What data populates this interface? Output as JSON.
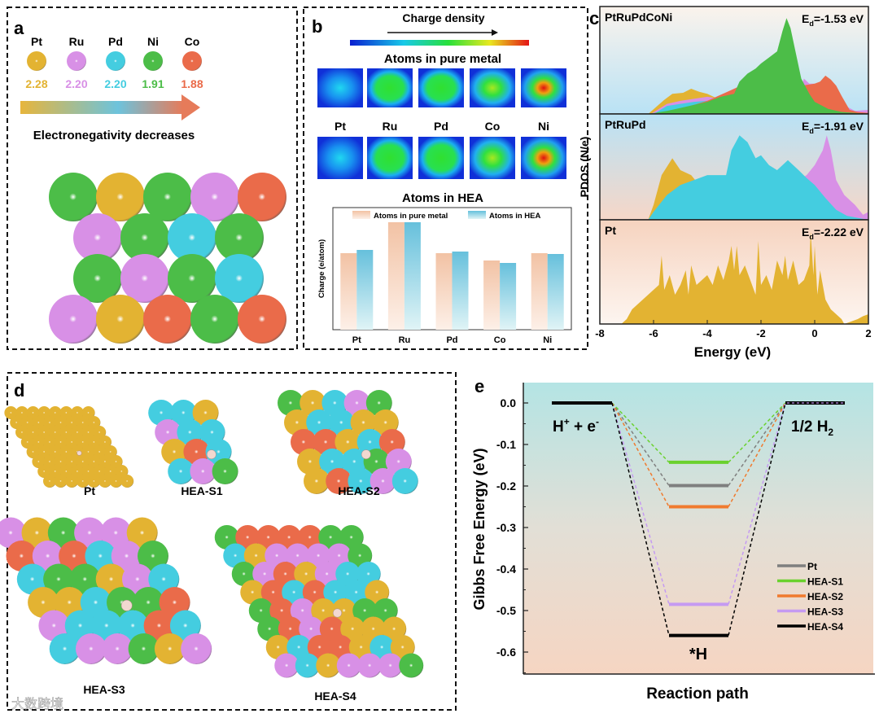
{
  "colors": {
    "Pt": "#e3b332",
    "Ru": "#d890e6",
    "Pd": "#44cde0",
    "Ni": "#4cbd48",
    "Co": "#ea6b4a"
  },
  "panel_a": {
    "letter": "a",
    "elements": [
      {
        "symbol": "Pt",
        "value": "2.28"
      },
      {
        "symbol": "Ru",
        "value": "2.20"
      },
      {
        "symbol": "Pd",
        "value": "2.20"
      },
      {
        "symbol": "Ni",
        "value": "1.91"
      },
      {
        "symbol": "Co",
        "value": "1.88"
      }
    ],
    "arrow_label": "Electronegativity decreases"
  },
  "panel_b": {
    "letter": "b",
    "colorbar_title": "Charge density",
    "row1_title": "Atoms in pure metal",
    "row2_title": "Atoms in HEA",
    "atom_labels": [
      "Pt",
      "Ru",
      "Pd",
      "Co",
      "Ni"
    ],
    "pure_intensity": [
      0.3,
      0.55,
      0.55,
      0.7,
      1.0
    ],
    "hea_intensity": [
      0.3,
      0.58,
      0.56,
      0.62,
      0.95
    ]
  },
  "panel_c": {
    "letter": "c",
    "panels": [
      {
        "name": "PtRuPdCoNi",
        "ed_prefix": "E",
        "ed_sub": "d",
        "ed_value": "=-1.53 eV"
      },
      {
        "name": "PtRuPd",
        "ed_prefix": "E",
        "ed_sub": "d",
        "ed_value": "=-1.91 eV"
      },
      {
        "name": "Pt",
        "ed_prefix": "E",
        "ed_sub": "d",
        "ed_value": "=-2.22 eV"
      }
    ]
  },
  "panel_d": {
    "letter": "d",
    "labels": [
      "Pt",
      "HEA-S1",
      "HEA-S2",
      "HEA-S3",
      "HEA-S4"
    ]
  },
  "panel_e": {
    "letter": "e",
    "label_initial": "H",
    "label_initial_sup": "+",
    "label_initial_rest": " + e",
    "label_initial_sup2": "-",
    "label_final": "1/2 H",
    "label_final_sub": "2",
    "label_mid": "*H"
  },
  "watermark": "大数跨境",
  "chart_data": [
    {
      "type": "bar",
      "title": "",
      "xlabel": "",
      "ylabel": "Charge (e/atom)",
      "categories": [
        "Pt",
        "Ru",
        "Pd",
        "Co",
        "Ni"
      ],
      "series": [
        {
          "name": "Atoms in pure metal",
          "color": "#f2c4a8",
          "values": [
            0.94,
            1.32,
            0.94,
            0.85,
            0.94
          ]
        },
        {
          "name": "Atoms in HEA",
          "color": "#6cc3dc",
          "values": [
            0.98,
            1.32,
            0.96,
            0.82,
            0.93
          ]
        }
      ],
      "ylim": [
        0,
        1.5
      ],
      "legend": "top"
    },
    {
      "type": "area",
      "title": "PDOS",
      "xlabel": "Energy (eV)",
      "ylabel": "PDOS (N/e)",
      "xlim": [
        -8,
        2
      ],
      "xticks": [
        "-8",
        "-6",
        "-4",
        "-2",
        "0",
        "2"
      ],
      "subplots": [
        {
          "name": "PtRuPdCoNi",
          "series": [
            {
              "name": "Pt",
              "x": [
                -6.2,
                -5.6,
                -5.3,
                -4.9,
                -4.6,
                -4.3,
                -4.0,
                -3.6,
                -3.0,
                -2.0
              ],
              "y": [
                0,
                0.14,
                0.2,
                0.21,
                0.25,
                0.22,
                0.2,
                0.15,
                0.1,
                0
              ]
            },
            {
              "name": "Ru",
              "x": [
                -6.1,
                -5.5,
                -5.0,
                -4.5,
                -4.0,
                -3.5,
                -3.0,
                -2.0,
                -0.6,
                -0.4,
                -0.2,
                0,
                0.5,
                1.0,
                1.5,
                2.0
              ],
              "y": [
                0,
                0.1,
                0.13,
                0.15,
                0.17,
                0.15,
                0.13,
                0.1,
                0.2,
                0.35,
                0.3,
                0.3,
                0.3,
                0.1,
                0.03,
                0.04
              ]
            },
            {
              "name": "Pd",
              "x": [
                -6.0,
                -5.5,
                -5.0,
                -4.5,
                -4.0,
                -3.0,
                -2.0
              ],
              "y": [
                0,
                0.08,
                0.1,
                0.12,
                0.13,
                0.1,
                0
              ]
            },
            {
              "name": "Co",
              "x": [
                -6.0,
                -5.0,
                -4.0,
                -3.0,
                -2.6,
                -2.0,
                -1.0,
                -0.5,
                0,
                0.2,
                0.4,
                0.6,
                0.8,
                1.0,
                1.3,
                1.6,
                2.0
              ],
              "y": [
                0,
                0.05,
                0.13,
                0.25,
                0.3,
                0.3,
                0.3,
                0.28,
                0.3,
                0.32,
                0.38,
                0.34,
                0.28,
                0.18,
                0.04,
                0.02,
                0.01
              ]
            },
            {
              "name": "Ni",
              "x": [
                -6.2,
                -5.5,
                -5.0,
                -4.0,
                -3.5,
                -3.0,
                -2.8,
                -2.5,
                -2.2,
                -2.0,
                -1.7,
                -1.4,
                -1.2,
                -1.05,
                -0.9,
                -0.7,
                -0.5,
                -0.2,
                0,
                0.5,
                1.0,
                2.0
              ],
              "y": [
                0,
                0.03,
                0.06,
                0.12,
                0.17,
                0.2,
                0.32,
                0.4,
                0.45,
                0.5,
                0.56,
                0.62,
                0.82,
                0.95,
                0.85,
                0.6,
                0.35,
                0.2,
                0.12,
                0.05,
                0.02,
                0
              ]
            }
          ]
        },
        {
          "name": "PtRuPd",
          "series": [
            {
              "name": "Pt",
              "x": [
                -6.2,
                -6.0,
                -5.7,
                -5.3,
                -5.0,
                -4.6,
                -4.3,
                -4.0,
                -3.5
              ],
              "y": [
                0,
                0.15,
                0.45,
                0.62,
                0.5,
                0.45,
                0.35,
                0.42,
                0.3
              ]
            },
            {
              "name": "Ru",
              "x": [
                -0.6,
                -0.3,
                0,
                0.3,
                0.45,
                0.6,
                0.8,
                1.1,
                1.3,
                1.5,
                1.8,
                2.0
              ],
              "y": [
                0.4,
                0.45,
                0.55,
                0.7,
                0.85,
                0.7,
                0.4,
                0.25,
                0.2,
                0.15,
                0.05,
                0.08
              ]
            },
            {
              "name": "Pd",
              "x": [
                -6.2,
                -6.0,
                -5.5,
                -5.0,
                -4.5,
                -4.0,
                -3.3,
                -3.1,
                -2.8,
                -2.5,
                -2.2,
                -2.0,
                -1.7,
                -1.4,
                -1.0,
                -0.6,
                -0.3,
                0,
                0.4,
                0.8,
                1.2,
                1.6,
                2.0
              ],
              "y": [
                0,
                0.08,
                0.25,
                0.35,
                0.4,
                0.45,
                0.45,
                0.7,
                0.85,
                0.78,
                0.62,
                0.65,
                0.55,
                0.5,
                0.6,
                0.5,
                0.42,
                0.35,
                0.22,
                0.1,
                0.04,
                0.02,
                0
              ]
            }
          ]
        },
        {
          "name": "Pt",
          "series": [
            {
              "name": "Pt",
              "x": [
                -7.2,
                -7.0,
                -6.8,
                -6.6,
                -6.4,
                -6.2,
                -6.0,
                -5.8,
                -5.7,
                -5.6,
                -5.4,
                -5.2,
                -5.0,
                -4.8,
                -4.7,
                -4.6,
                -4.4,
                -4.2,
                -4.0,
                -3.8,
                -3.6,
                -3.4,
                -3.2,
                -3.1,
                -3.0,
                -2.9,
                -2.8,
                -2.6,
                -2.4,
                -2.2,
                -2.1,
                -2.0,
                -1.8,
                -1.6,
                -1.4,
                -1.2,
                -1.1,
                -1.0,
                -0.8,
                -0.6,
                -0.4,
                -0.2,
                -0.15,
                -0.05,
                0,
                0.1,
                0.2,
                0.3,
                0.4,
                0.6,
                0.8,
                1.0,
                1.1,
                1.3,
                1.6,
                1.8,
                2.0
              ],
              "y": [
                0,
                0.05,
                0.15,
                0.2,
                0.25,
                0.3,
                0.35,
                0.4,
                0.7,
                0.35,
                0.5,
                0.3,
                0.4,
                0.55,
                0.3,
                0.6,
                0.4,
                0.45,
                0.5,
                0.4,
                0.6,
                0.45,
                0.65,
                0.8,
                0.55,
                0.8,
                0.5,
                0.6,
                0.45,
                0.3,
                0.85,
                0.4,
                0.5,
                0.35,
                0.65,
                0.5,
                0.7,
                0.45,
                0.65,
                0.4,
                0.45,
                0.6,
                0.95,
                0.5,
                0.8,
                0.3,
                0.55,
                0.4,
                0.25,
                0.15,
                0.1,
                0.05,
                0,
                0.02,
                0.05,
                0.08,
                0.1
              ]
            }
          ]
        }
      ]
    },
    {
      "type": "line",
      "title": "",
      "xlabel": "Reaction path",
      "ylabel": "Gibbs Free Energy (eV)",
      "ylim": [
        -0.65,
        0.05
      ],
      "yticks": [
        "0.0",
        "-0.1",
        "-0.2",
        "-0.3",
        "-0.4",
        "-0.5",
        "-0.6"
      ],
      "legend": "bottom-right",
      "series": [
        {
          "name": "Pt",
          "color": "#7f7f7f",
          "values": [
            0,
            -0.199,
            0
          ]
        },
        {
          "name": "HEA-S1",
          "color": "#6ad12e",
          "values": [
            0,
            -0.143,
            0
          ]
        },
        {
          "name": "HEA-S2",
          "color": "#f07a2e",
          "values": [
            0,
            -0.25,
            0
          ]
        },
        {
          "name": "HEA-S3",
          "color": "#c59af2",
          "values": [
            0,
            -0.485,
            0
          ]
        },
        {
          "name": "HEA-S4",
          "color": "#000000",
          "values": [
            0,
            -0.56,
            0
          ]
        }
      ]
    }
  ]
}
